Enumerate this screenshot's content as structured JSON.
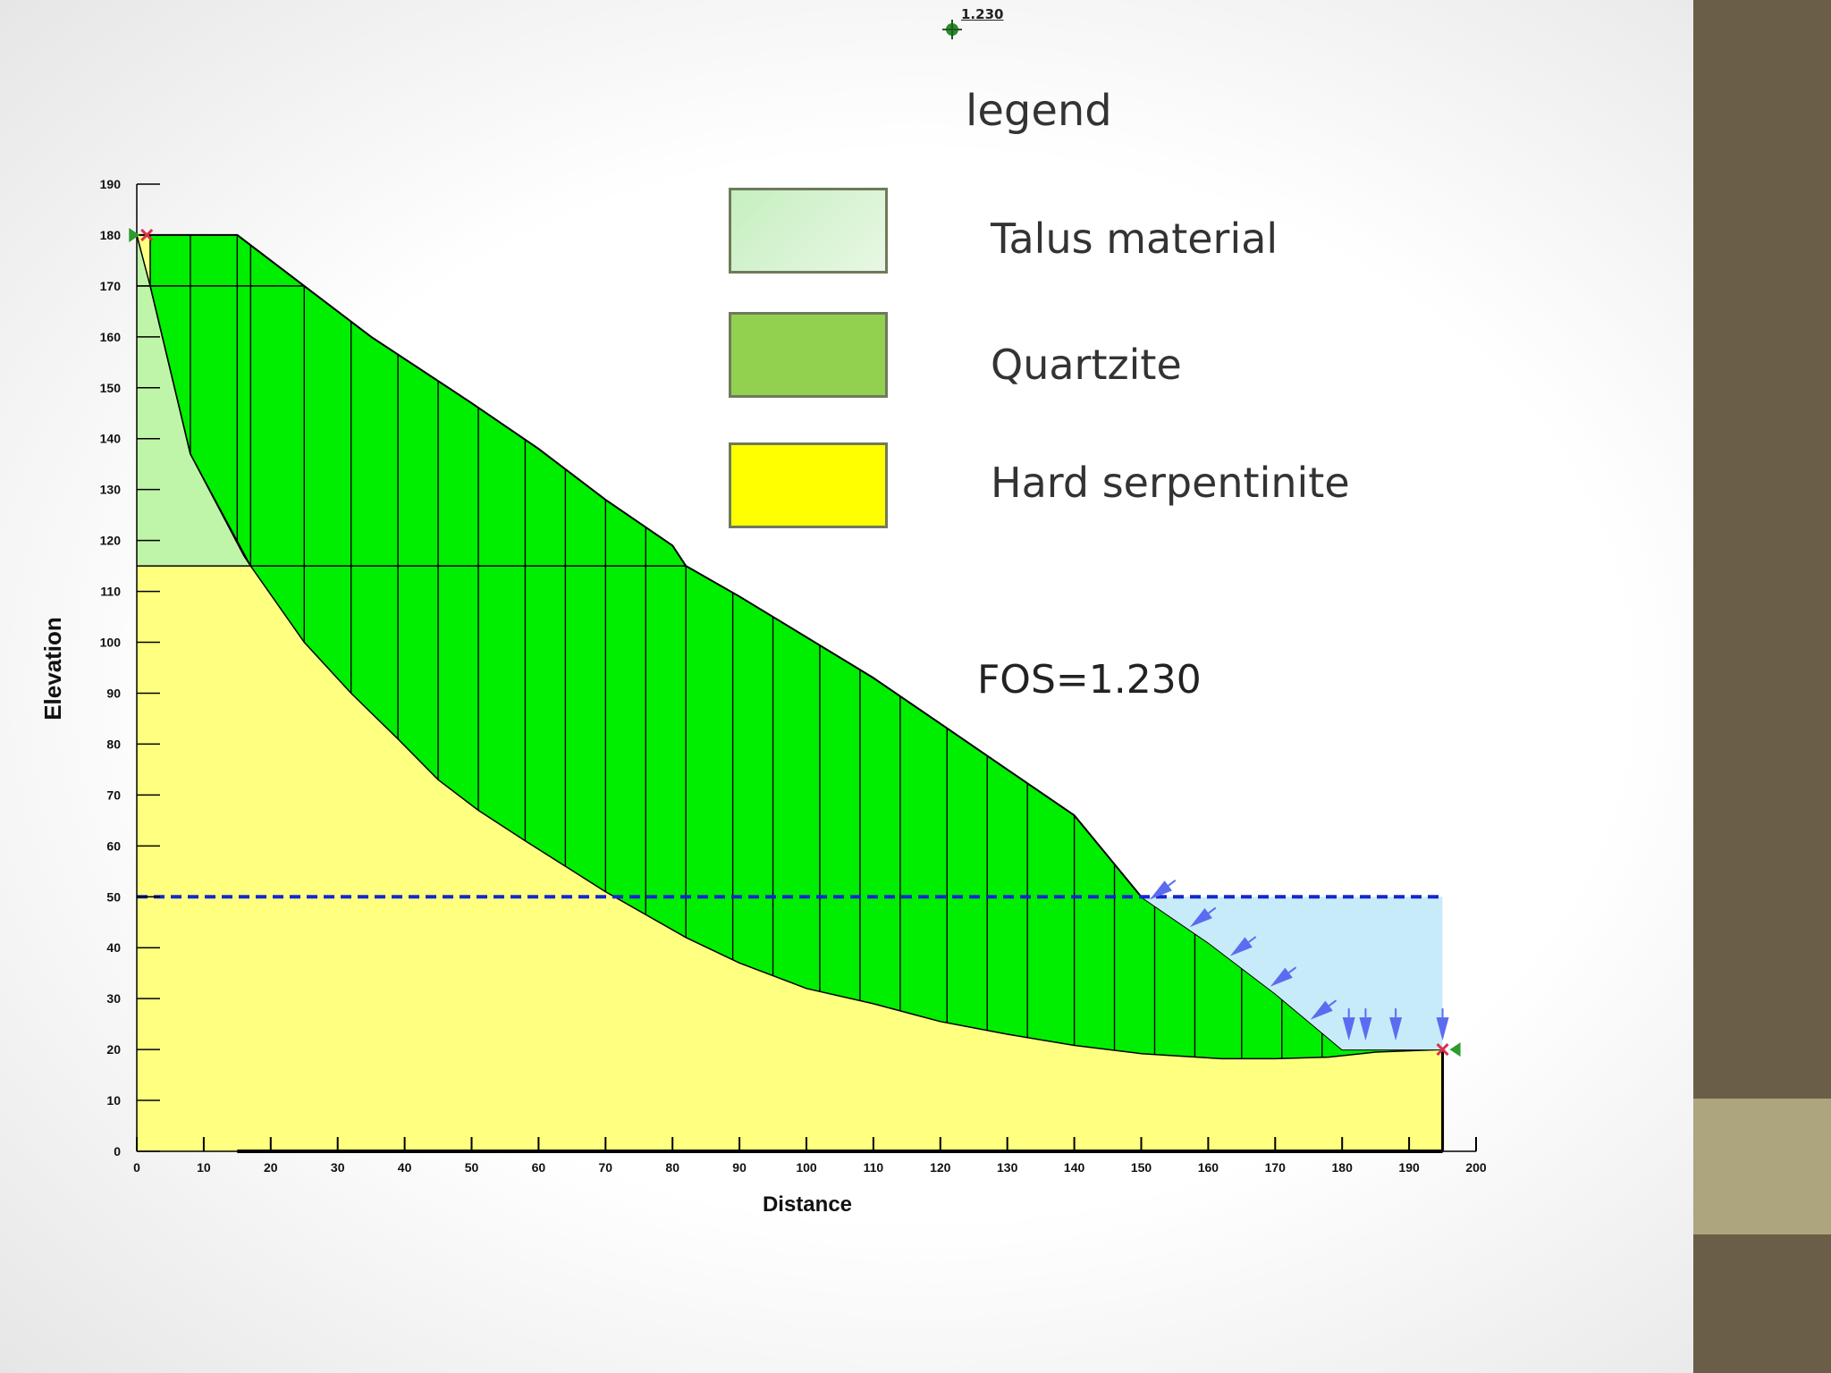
{
  "legend": {
    "title": "legend",
    "items": [
      {
        "label": "Talus material",
        "color": "#cdf2c4"
      },
      {
        "label": "Quartzite",
        "color": "#8fcf4f"
      },
      {
        "label": "Hard serpentinite",
        "color": "#ffff00"
      }
    ]
  },
  "fos_label": "FOS=1.230",
  "center_marker_label": "1.230",
  "chart_data": {
    "type": "slope-stability cross-section",
    "xlabel": "Distance",
    "ylabel": "Elevation",
    "xlim": [
      0,
      200
    ],
    "ylim": [
      0,
      190
    ],
    "x_ticks": [
      0,
      10,
      20,
      30,
      40,
      50,
      60,
      70,
      80,
      90,
      100,
      110,
      120,
      130,
      140,
      150,
      160,
      170,
      180,
      190,
      200
    ],
    "y_ticks": [
      0,
      10,
      20,
      30,
      40,
      50,
      60,
      70,
      80,
      90,
      100,
      110,
      120,
      130,
      140,
      150,
      160,
      170,
      180,
      190
    ],
    "colors": {
      "talus": "#bff5a8",
      "serpentinite": "#ffff80",
      "sliding_mass": "#00ee00",
      "water": "#c8ebf9",
      "water_line": "#1428cc",
      "load_arrows": "#5b6cf0"
    },
    "ground_surface": [
      [
        0,
        180
      ],
      [
        15,
        180
      ],
      [
        25,
        170
      ],
      [
        35,
        160
      ],
      [
        50,
        147
      ],
      [
        60,
        138
      ],
      [
        70,
        128
      ],
      [
        80,
        119
      ],
      [
        82,
        115
      ],
      [
        90,
        109
      ],
      [
        100,
        101
      ],
      [
        110,
        93
      ],
      [
        120,
        84
      ],
      [
        130,
        75
      ],
      [
        140,
        66
      ],
      [
        150,
        50
      ],
      [
        160,
        41
      ],
      [
        170,
        31
      ],
      [
        180,
        20
      ],
      [
        195,
        20
      ]
    ],
    "layer_boundary_elevation": 115,
    "talus_base": [
      [
        0,
        180
      ],
      [
        2,
        170
      ],
      [
        8,
        137
      ],
      [
        16,
        117
      ],
      [
        17,
        115
      ]
    ],
    "slip_surface": [
      [
        2,
        180
      ],
      [
        2,
        170
      ],
      [
        8,
        137
      ],
      [
        17,
        115
      ],
      [
        25,
        100
      ],
      [
        32,
        90
      ],
      [
        39,
        81
      ],
      [
        45,
        73
      ],
      [
        51,
        67
      ],
      [
        58,
        61
      ],
      [
        64,
        56
      ],
      [
        70,
        51
      ],
      [
        82,
        42
      ],
      [
        90,
        37
      ],
      [
        100,
        32
      ],
      [
        110,
        29
      ],
      [
        120,
        25.5
      ],
      [
        130,
        23
      ],
      [
        140,
        20.8
      ],
      [
        150,
        19.2
      ],
      [
        162,
        18.2
      ],
      [
        170,
        18.2
      ],
      [
        178,
        18.5
      ],
      [
        185,
        19.5
      ],
      [
        195,
        20
      ]
    ],
    "slice_boundaries_x": [
      8,
      15,
      17,
      25,
      32,
      39,
      45,
      51,
      58,
      64,
      70,
      76,
      82,
      89,
      95,
      102,
      108,
      114,
      121,
      127,
      133,
      140,
      146,
      152,
      158,
      165,
      171,
      177
    ],
    "water_table": {
      "elevation": 50,
      "x_start": 0,
      "x_end": 195
    },
    "pond": {
      "x_start": 150,
      "x_end": 195,
      "surface": 50,
      "base": 20
    },
    "min_fos": 1.23,
    "slip_center": [
      121,
      222
    ]
  }
}
